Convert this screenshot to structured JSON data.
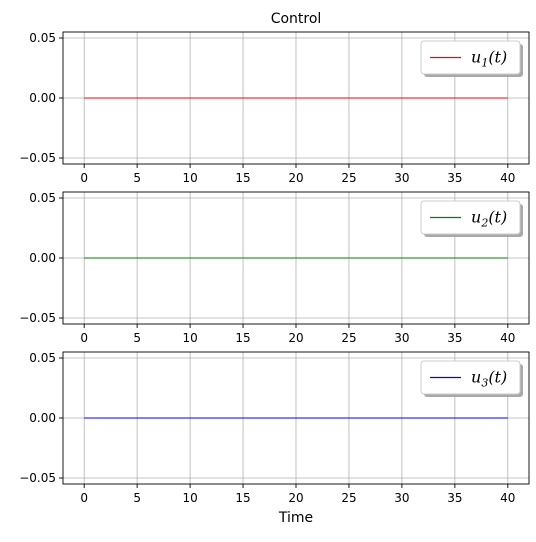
{
  "chart_data": [
    {
      "type": "line",
      "title": "Control",
      "xlabel": "",
      "ylabel": "",
      "xlim": [
        -2,
        42
      ],
      "ylim": [
        -0.055,
        0.055
      ],
      "x_ticks": [
        0,
        5,
        10,
        15,
        20,
        25,
        30,
        35,
        40
      ],
      "x_tick_labels": [
        "0",
        "5",
        "10",
        "15",
        "20",
        "25",
        "30",
        "35",
        "40"
      ],
      "y_ticks": [
        -0.05,
        0.0,
        0.05
      ],
      "y_tick_labels": [
        "−0.05",
        "0.00",
        "0.05"
      ],
      "grid": true,
      "legend_position": "top-right",
      "series": [
        {
          "name": "u1(t)",
          "legend_main": "u",
          "legend_sub": "1",
          "legend_tail": "(t)",
          "color": "#ff0000",
          "x": [
            0,
            40
          ],
          "y": [
            0,
            0
          ]
        }
      ]
    },
    {
      "type": "line",
      "title": "",
      "xlabel": "",
      "ylabel": "",
      "xlim": [
        -2,
        42
      ],
      "ylim": [
        -0.055,
        0.055
      ],
      "x_ticks": [
        0,
        5,
        10,
        15,
        20,
        25,
        30,
        35,
        40
      ],
      "x_tick_labels": [
        "0",
        "5",
        "10",
        "15",
        "20",
        "25",
        "30",
        "35",
        "40"
      ],
      "y_ticks": [
        -0.05,
        0.0,
        0.05
      ],
      "y_tick_labels": [
        "−0.05",
        "0.00",
        "0.05"
      ],
      "grid": true,
      "legend_position": "top-right",
      "series": [
        {
          "name": "u2(t)",
          "legend_main": "u",
          "legend_sub": "2",
          "legend_tail": "(t)",
          "color": "#008000",
          "x": [
            0,
            40
          ],
          "y": [
            0,
            0
          ]
        }
      ]
    },
    {
      "type": "line",
      "title": "",
      "xlabel": "Time",
      "ylabel": "",
      "xlim": [
        -2,
        42
      ],
      "ylim": [
        -0.055,
        0.055
      ],
      "x_ticks": [
        0,
        5,
        10,
        15,
        20,
        25,
        30,
        35,
        40
      ],
      "x_tick_labels": [
        "0",
        "5",
        "10",
        "15",
        "20",
        "25",
        "30",
        "35",
        "40"
      ],
      "y_ticks": [
        -0.05,
        0.0,
        0.05
      ],
      "y_tick_labels": [
        "−0.05",
        "0.00",
        "0.05"
      ],
      "grid": true,
      "legend_position": "top-right",
      "series": [
        {
          "name": "u3(t)",
          "legend_main": "u",
          "legend_sub": "3",
          "legend_tail": "(t)",
          "color": "#0000ff",
          "x": [
            0,
            40
          ],
          "y": [
            0,
            0
          ]
        }
      ]
    }
  ]
}
